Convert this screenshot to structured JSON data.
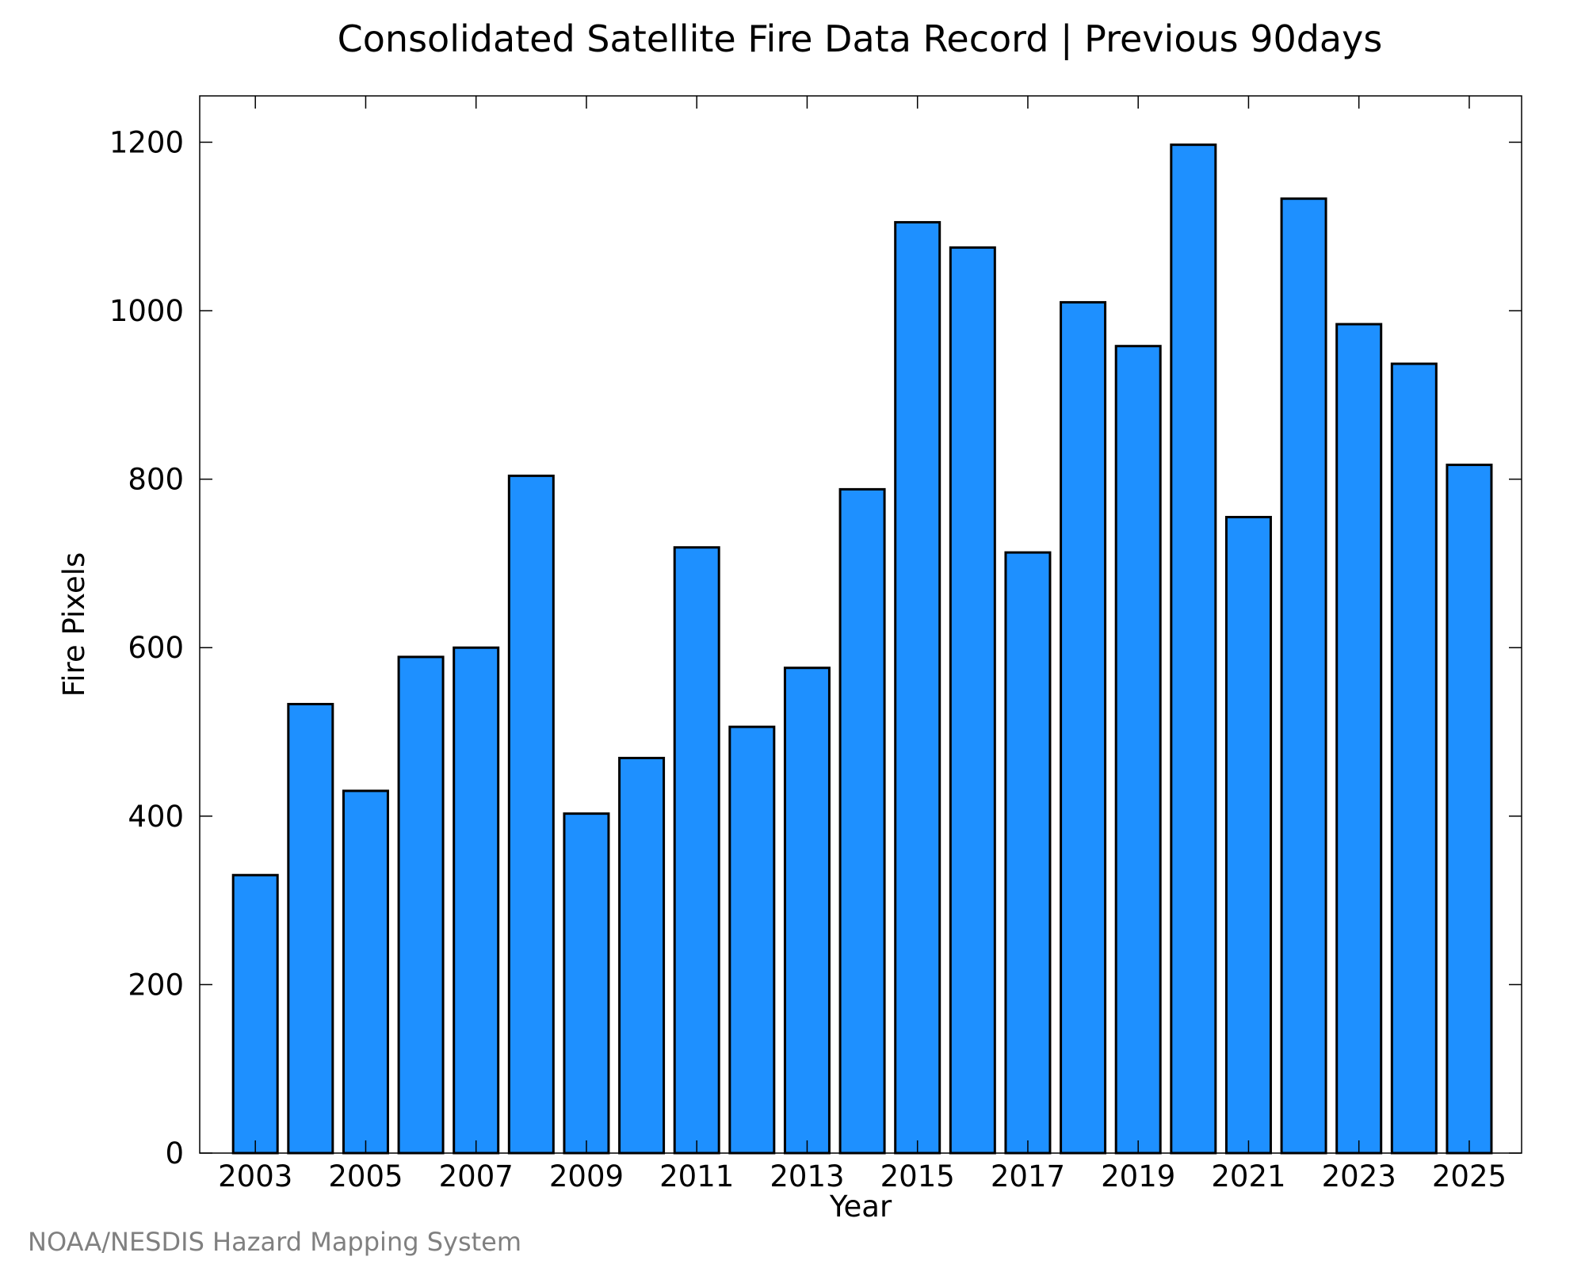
{
  "chart_data": {
    "type": "bar",
    "title": "Consolidated Satellite Fire Data Record | Previous 90days",
    "xlabel": "Year",
    "ylabel": "Fire Pixels",
    "categories": [
      "2003",
      "2004",
      "2005",
      "2006",
      "2007",
      "2008",
      "2009",
      "2010",
      "2011",
      "2012",
      "2013",
      "2014",
      "2015",
      "2016",
      "2017",
      "2018",
      "2019",
      "2020",
      "2021",
      "2022",
      "2023",
      "2024",
      "2025"
    ],
    "values": [
      330,
      533,
      430,
      589,
      600,
      804,
      403,
      469,
      719,
      506,
      576,
      788,
      1105,
      1075,
      713,
      1010,
      958,
      1197,
      755,
      1133,
      984,
      937,
      817
    ],
    "xticks": [
      "2003",
      "2005",
      "2007",
      "2009",
      "2011",
      "2013",
      "2015",
      "2017",
      "2019",
      "2021",
      "2023",
      "2025"
    ],
    "yticks": [
      0,
      200,
      400,
      600,
      800,
      1000,
      1200
    ],
    "ylim": [
      0,
      1255
    ],
    "grid": false,
    "bar_color": "#1E90FF",
    "bar_edge_color": "#000000"
  },
  "credit": "NOAA/NESDIS Hazard Mapping System"
}
